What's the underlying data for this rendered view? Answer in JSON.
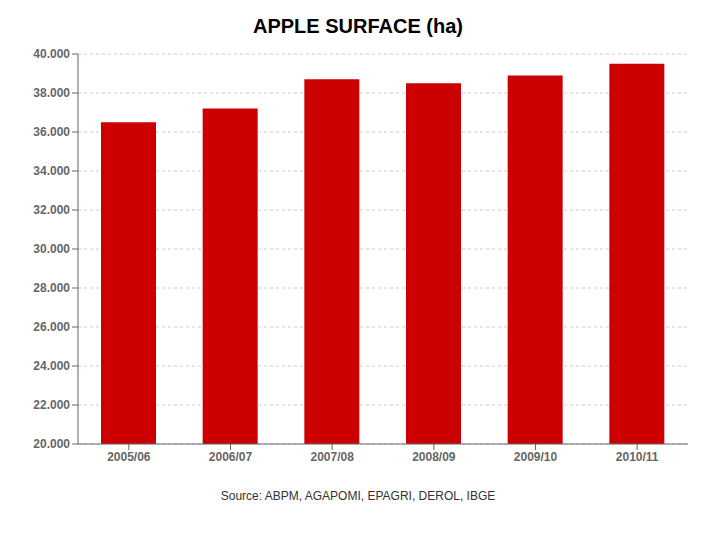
{
  "chart_data": {
    "type": "bar",
    "title": "APPLE SURFACE (ha)",
    "annotation": "Source: ABPM, AGAPOMI, EPAGRI, DEROL, IBGE",
    "categories": [
      "2005/06",
      "2006/07",
      "2007/08",
      "2008/09",
      "2009/10",
      "2010/11"
    ],
    "values": [
      36500,
      37200,
      38700,
      38500,
      38900,
      39500
    ],
    "color": "#CC0000",
    "ylim": [
      20000,
      40000
    ],
    "yticks": [
      {
        "value": 20000,
        "label": "20.000"
      },
      {
        "value": 22000,
        "label": "22.000"
      },
      {
        "value": 24000,
        "label": "24.000"
      },
      {
        "value": 26000,
        "label": "26.000"
      },
      {
        "value": 28000,
        "label": "28.000"
      },
      {
        "value": 30000,
        "label": "30.000"
      },
      {
        "value": 32000,
        "label": "32.000"
      },
      {
        "value": 34000,
        "label": "34.000"
      },
      {
        "value": 36000,
        "label": "36.000"
      },
      {
        "value": 38000,
        "label": "38.000"
      },
      {
        "value": 40000,
        "label": "40.000"
      }
    ],
    "grid": true
  }
}
